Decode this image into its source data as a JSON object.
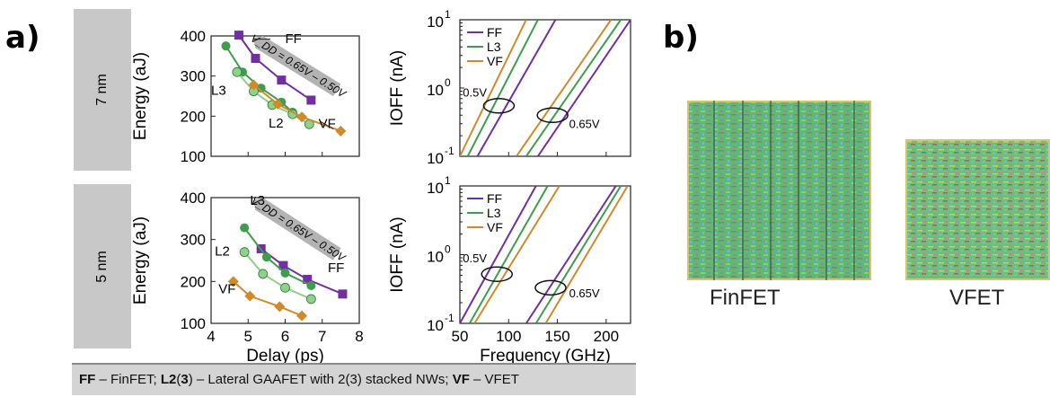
{
  "panels": {
    "a": "a)",
    "b": "b)"
  },
  "rows": [
    {
      "label": "7 nm"
    },
    {
      "label": "5 nm"
    }
  ],
  "caption": {
    "ff": "FF",
    "ff_text": " – FinFET;  ",
    "l": "L2",
    "l_paren": "(",
    "l3": "3",
    "l_close": ")",
    "l_text": " – Lateral GAAFET with 2(3) stacked NWs;  ",
    "vf": "VF",
    "vf_text": " – VFET"
  },
  "colors": {
    "FF": "#7030a0",
    "L3": "#3f9e4d",
    "L2": "#8fd08a",
    "VF": "#d08a2a"
  },
  "layout_labels": {
    "finfet": "FinFET",
    "vfet": "VFET"
  },
  "chart_data": [
    {
      "id": "energy-delay-7nm",
      "type": "line",
      "xlabel": "",
      "ylabel": "Energy (aJ)",
      "xlim": [
        4,
        8
      ],
      "ylim": [
        100,
        400
      ],
      "yticks": [
        "100",
        "200",
        "300",
        "400"
      ],
      "arrow_label": "V_DD = 0.65V – 0.50V",
      "series": [
        {
          "name": "FF",
          "marker": "square",
          "x": [
            4.75,
            5.2,
            5.9,
            6.7
          ],
          "y": [
            402,
            344,
            290,
            240
          ]
        },
        {
          "name": "L3",
          "marker": "circle",
          "x": [
            4.4,
            4.85,
            5.35,
            5.9,
            6.2
          ],
          "y": [
            375,
            310,
            270,
            235,
            210
          ]
        },
        {
          "name": "L2",
          "marker": "circle",
          "x": [
            4.7,
            5.15,
            5.65,
            6.2,
            6.65
          ],
          "y": [
            310,
            262,
            228,
            205,
            180
          ]
        },
        {
          "name": "VF",
          "marker": "diamond",
          "x": [
            5.15,
            5.8,
            6.45,
            7.5
          ],
          "y": [
            278,
            230,
            198,
            163
          ]
        }
      ],
      "labels": [
        "FF",
        "L3",
        "L2",
        "VF"
      ]
    },
    {
      "id": "ioff-freq-7nm",
      "type": "line",
      "xlabel": "",
      "ylabel": "IOFF (nA)",
      "xlim": [
        50,
        225
      ],
      "ylim": [
        0.1,
        10
      ],
      "yscale": "log",
      "yticks": [
        "10",
        "10",
        "10"
      ],
      "ytick_exps": [
        "-1",
        "0",
        "1"
      ],
      "legend": [
        "FF",
        "L3",
        "VF"
      ],
      "legend_position": "top-left",
      "annotations": [
        "0.5V",
        "0.65V"
      ],
      "series": [
        {
          "name": "VF",
          "x1": [
            50,
            118
          ],
          "x2": [
            108,
            205
          ],
          "y": [
            0.1,
            10
          ]
        },
        {
          "name": "L3",
          "x1": [
            58,
            130
          ],
          "x2": [
            118,
            215
          ],
          "y": [
            0.1,
            10
          ]
        },
        {
          "name": "FF",
          "x1": [
            68,
            148
          ],
          "x2": [
            130,
            225
          ],
          "y": [
            0.1,
            10
          ]
        }
      ]
    },
    {
      "id": "energy-delay-5nm",
      "type": "line",
      "xlabel": "Delay (ps)",
      "ylabel": "Energy (aJ)",
      "xlim": [
        4,
        8
      ],
      "ylim": [
        100,
        400
      ],
      "xticks": [
        "4",
        "5",
        "6",
        "7",
        "8"
      ],
      "yticks": [
        "100",
        "200",
        "300",
        "400"
      ],
      "arrow_label": "V_DD = 0.65V – 0.50V",
      "series": [
        {
          "name": "FF",
          "marker": "square",
          "x": [
            5.35,
            5.95,
            6.6,
            7.55
          ],
          "y": [
            278,
            238,
            205,
            170
          ]
        },
        {
          "name": "L3",
          "marker": "circle",
          "x": [
            4.9,
            5.5,
            6.0,
            6.7
          ],
          "y": [
            328,
            258,
            220,
            190
          ]
        },
        {
          "name": "L2",
          "marker": "circle",
          "x": [
            4.9,
            5.4,
            6.0,
            6.7
          ],
          "y": [
            270,
            218,
            185,
            158
          ]
        },
        {
          "name": "VF",
          "marker": "diamond",
          "x": [
            4.6,
            5.05,
            5.85,
            6.45
          ],
          "y": [
            200,
            165,
            140,
            118
          ]
        }
      ],
      "labels": [
        "L3",
        "L2",
        "FF",
        "VF"
      ]
    },
    {
      "id": "ioff-freq-5nm",
      "type": "line",
      "xlabel": "Frequency (GHz)",
      "ylabel": "IOFF (nA)",
      "xlim": [
        50,
        225
      ],
      "ylim": [
        0.1,
        10
      ],
      "yscale": "log",
      "xticks": [
        "50",
        "100",
        "150",
        "200"
      ],
      "yticks": [
        "10",
        "10",
        "10"
      ],
      "ytick_exps": [
        "-1",
        "0",
        "1"
      ],
      "legend": [
        "FF",
        "L3",
        "VF"
      ],
      "legend_position": "top-left",
      "annotations": [
        "0.5V",
        "0.65V"
      ],
      "series": [
        {
          "name": "FF",
          "x1": [
            50,
            128
          ],
          "x2": [
            118,
            210
          ],
          "y": [
            0.1,
            10
          ]
        },
        {
          "name": "L3",
          "x1": [
            60,
            140
          ],
          "x2": [
            128,
            215
          ],
          "y": [
            0.1,
            10
          ]
        },
        {
          "name": "VF",
          "x1": [
            65,
            152
          ],
          "x2": [
            138,
            222
          ],
          "y": [
            0.1,
            10
          ]
        }
      ]
    }
  ]
}
